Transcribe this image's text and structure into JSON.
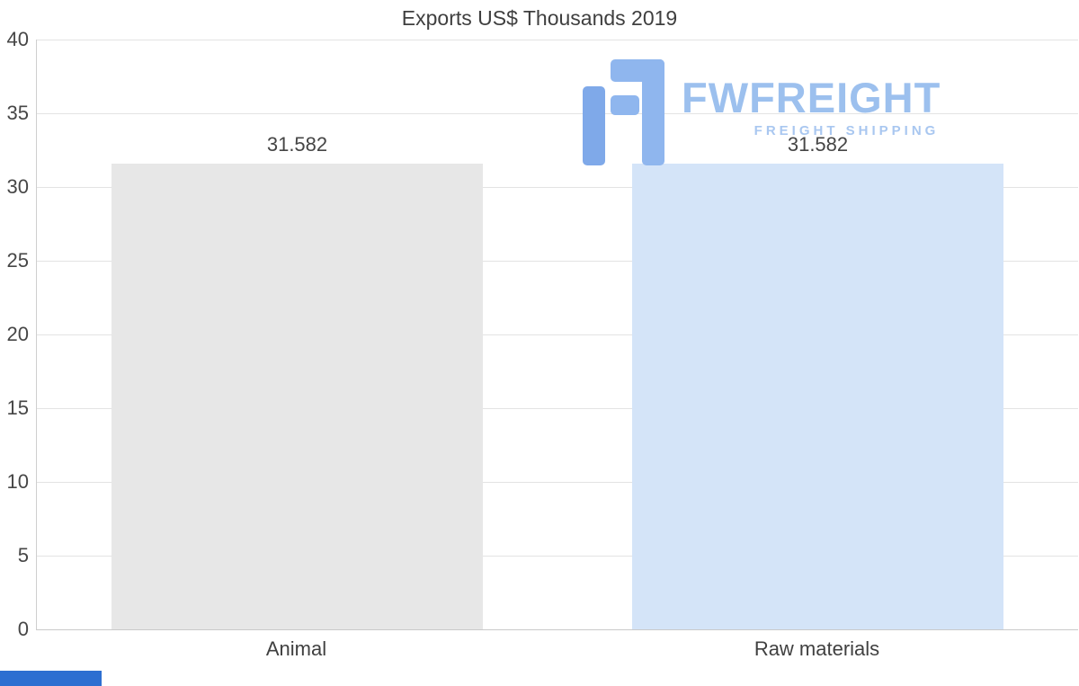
{
  "title": "Exports US$ Thousands 2019",
  "watermark": {
    "brand": "FWFREIGHT",
    "tagline": "FREIGHT SHIPPING"
  },
  "colors": {
    "bar_animal": "#e7e7e7",
    "bar_raw_materials": "#d4e4f8",
    "gridline": "#e3e3e3",
    "axis": "#c9c9c9",
    "text": "#404040",
    "watermark_blue": "#9cc0ee",
    "bottom_strip_blue": "#2d6fd1"
  },
  "chart_data": {
    "type": "bar",
    "title": "Exports US$ Thousands 2019",
    "categories": [
      "Animal",
      "Raw materials"
    ],
    "values": [
      31.582,
      31.582
    ],
    "value_labels": [
      "31.582",
      "31.582"
    ],
    "bar_colors": [
      "#e7e7e7",
      "#d4e4f8"
    ],
    "xlabel": "",
    "ylabel": "",
    "ylim": [
      0,
      40
    ],
    "yticks": [
      0,
      5,
      10,
      15,
      20,
      25,
      30,
      35,
      40
    ],
    "grid": true,
    "legend": "none"
  }
}
